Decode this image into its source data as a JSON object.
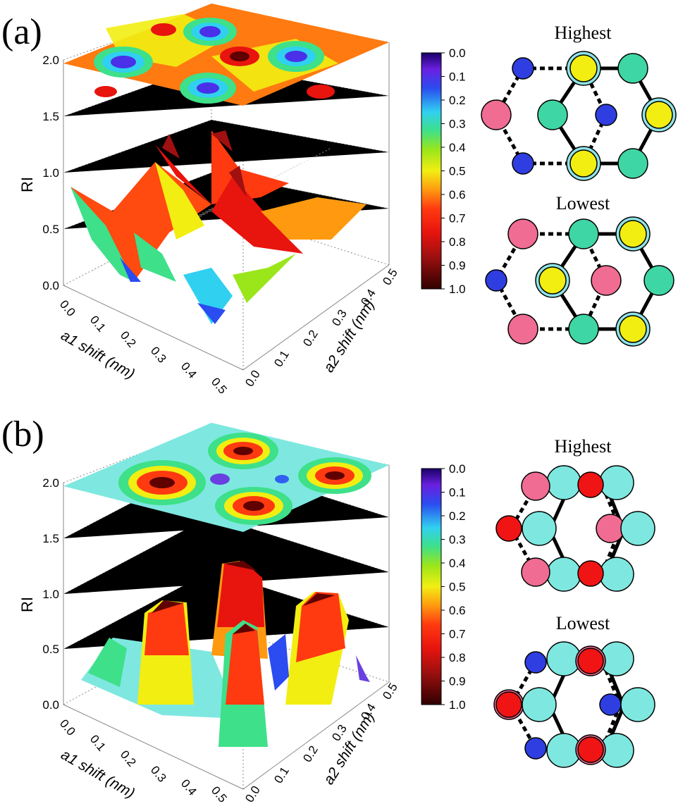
{
  "panels": [
    {
      "label": "(a)",
      "colorbar": {
        "ticks": [
          "0.0",
          "0.1",
          "0.2",
          "0.3",
          "0.4",
          "0.5",
          "0.6",
          "0.7",
          "0.8",
          "0.9",
          "1.0"
        ]
      },
      "diagrams": [
        {
          "title": "Highest",
          "atoms": [
            {
              "c": "blue"
            },
            {
              "c": "yellow",
              "ring": true
            },
            {
              "c": "teal"
            },
            {
              "c": "pink"
            },
            {
              "c": "teal"
            },
            {
              "c": "blue"
            },
            {
              "c": "yellow",
              "ring": true
            },
            {
              "c": "blue"
            },
            {
              "c": "yellow",
              "ring": true
            },
            {
              "c": "teal"
            }
          ]
        },
        {
          "title": "Lowest",
          "atoms": [
            {
              "c": "pink"
            },
            {
              "c": "teal"
            },
            {
              "c": "yellow",
              "ring": true
            },
            {
              "c": "blue"
            },
            {
              "c": "yellow",
              "ring": true
            },
            {
              "c": "pink"
            },
            {
              "c": "teal"
            },
            {
              "c": "pink"
            },
            {
              "c": "teal"
            },
            {
              "c": "yellow",
              "ring": true
            }
          ]
        }
      ]
    },
    {
      "label": "(b)",
      "colorbar": {
        "ticks": [
          "0.0",
          "0.1",
          "0.2",
          "0.3",
          "0.4",
          "0.5",
          "0.6",
          "0.7",
          "0.8",
          "0.9",
          "1.0"
        ]
      },
      "diagrams": [
        {
          "title": "Highest"
        },
        {
          "title": "Lowest"
        }
      ]
    }
  ],
  "colors": {
    "blue": "#2f3ee0",
    "yellow": "#f2ee12",
    "teal": "#3fd6a6",
    "pink": "#f06c92",
    "ring": "#8fe3e6",
    "red": "#f01414",
    "cyan": "#7ee8e0"
  },
  "chart_data": [
    {
      "type": "surface3d",
      "panel": "(a)",
      "xlabel": "a1 shift (nm)",
      "ylabel": "a2 shift (nm)",
      "zlabel": "RI",
      "x_ticks": [
        "0.0",
        "0.1",
        "0.2",
        "0.3",
        "0.4",
        "0.5"
      ],
      "y_ticks": [
        "0.0",
        "0.1",
        "0.2",
        "0.3",
        "0.4",
        "0.5"
      ],
      "z_ticks": [
        "0.0",
        "0.5",
        "1.0",
        "1.5",
        "2.0"
      ],
      "xlim": [
        0,
        0.5
      ],
      "ylim": [
        0,
        0.5
      ],
      "zlim": [
        0,
        2.0
      ],
      "colorscale": {
        "min": 0.0,
        "max": 1.0,
        "low_color": "purple",
        "high_color": "dark red"
      },
      "surface_maxima_xy": [
        [
          0.05,
          0.05
        ],
        [
          0.25,
          0.25
        ],
        [
          0.45,
          0.45
        ]
      ],
      "surface_minima_xy": [
        [
          0.05,
          0.45
        ],
        [
          0.15,
          0.35
        ],
        [
          0.35,
          0.15
        ],
        [
          0.45,
          0.05
        ]
      ],
      "projection_plane_z": 2.0
    },
    {
      "type": "surface3d",
      "panel": "(b)",
      "xlabel": "a1 shift (nm)",
      "ylabel": "a2 shift (nm)",
      "zlabel": "RI",
      "x_ticks": [
        "0.0",
        "0.1",
        "0.2",
        "0.3",
        "0.4",
        "0.5"
      ],
      "y_ticks": [
        "0.0",
        "0.1",
        "0.2",
        "0.3",
        "0.4",
        "0.5"
      ],
      "z_ticks": [
        "0.0",
        "0.5",
        "1.0",
        "1.5",
        "2.0"
      ],
      "xlim": [
        0,
        0.5
      ],
      "ylim": [
        0,
        0.5
      ],
      "zlim": [
        0,
        2.0
      ],
      "colorscale": {
        "min": 0.0,
        "max": 1.0,
        "low_color": "purple",
        "high_color": "dark red"
      },
      "surface_maxima_xy": [
        [
          0.15,
          0.35
        ],
        [
          0.25,
          0.05
        ],
        [
          0.35,
          0.25
        ],
        [
          0.45,
          0.45
        ]
      ],
      "surface_minima_xy": [
        [
          0.05,
          0.15
        ],
        [
          0.35,
          0.45
        ]
      ],
      "projection_plane_z": 2.0
    }
  ]
}
